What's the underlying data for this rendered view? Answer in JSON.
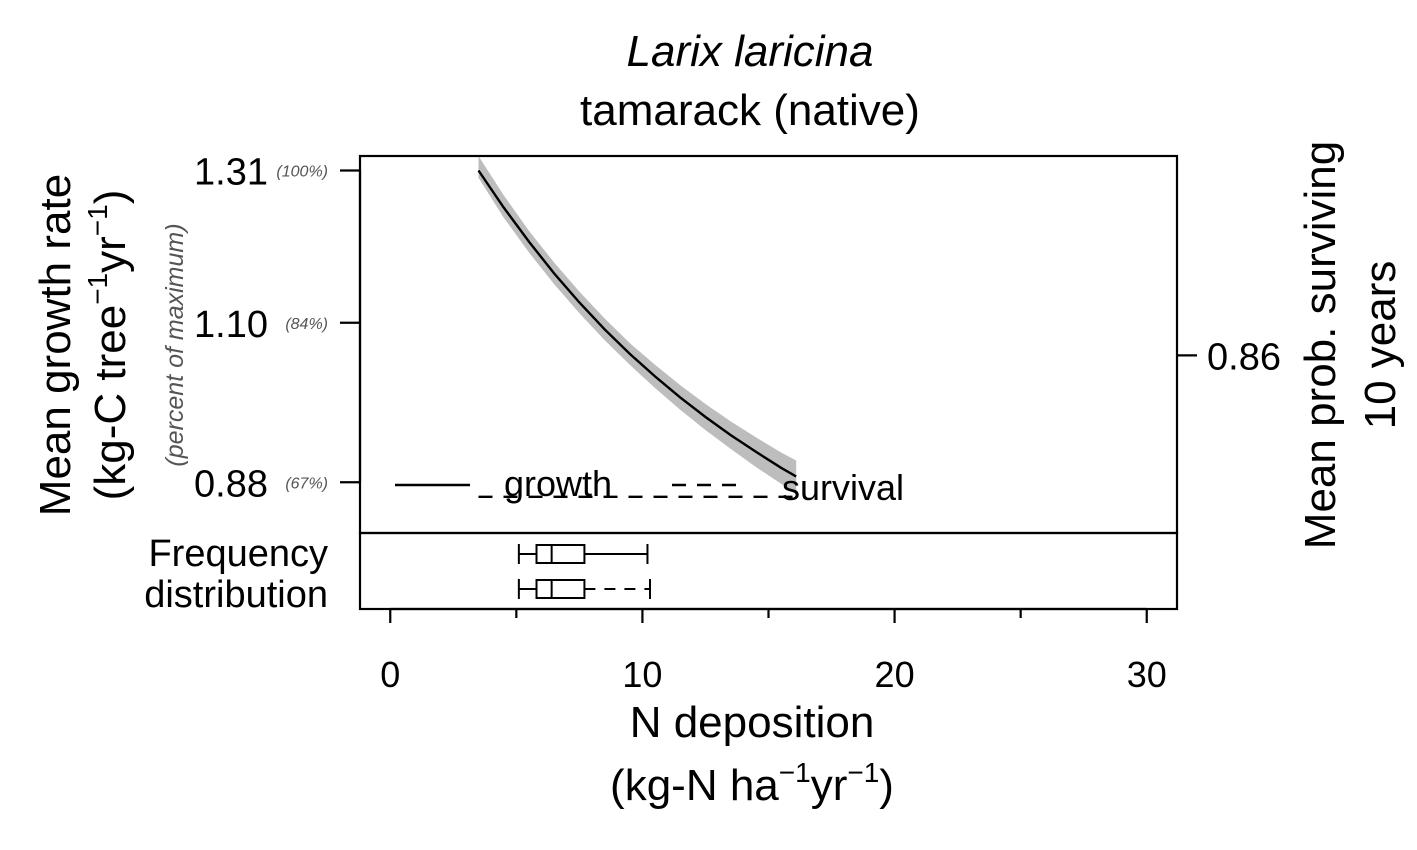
{
  "chart_data": {
    "type": "line",
    "title": "Larix laricina",
    "subtitle": "tamarack (native)",
    "xlabel": "N deposition",
    "xlabel_units_prefix": "(kg-N ha",
    "xlabel_units_mid": "yr",
    "xlabel_units_suffix": ")",
    "ylabel": "Mean growth rate",
    "ylabel_units_prefix": "(kg-C tree",
    "ylabel_units_mid": "yr",
    "ylabel_units_suffix": ")",
    "superscript": "−1",
    "ylabel_secondary": "(percent of maximum)",
    "ylabel_right_line1": "Mean prob. surviving",
    "ylabel_right_line2": "10 years",
    "xlim": [
      -1.2,
      31.2
    ],
    "ylim": [
      0.81,
      1.33
    ],
    "x_ticks": [
      0,
      10,
      20,
      30
    ],
    "x_minor_ticks": [
      5,
      15,
      25
    ],
    "y_ticks": [
      {
        "value": 1.31,
        "label": "1.31",
        "pct": "(100%)"
      },
      {
        "value": 1.1,
        "label": "1.10",
        "pct": "(84%)"
      },
      {
        "value": 0.88,
        "label": "0.88",
        "pct": "(67%)"
      }
    ],
    "right_ticks": [
      {
        "value": 0.86,
        "label": "0.86",
        "y_left_equiv": 1.055
      }
    ],
    "series": [
      {
        "name": "growth",
        "style": "solid",
        "color": "#000000",
        "band_color": "#bdbdbd",
        "x": [
          3.5,
          4.5,
          5.5,
          6.5,
          7.5,
          8.5,
          9.5,
          10.5,
          11.5,
          12.5,
          13.5,
          14.5,
          15.5,
          16.1
        ],
        "y": [
          1.31,
          1.259,
          1.212,
          1.168,
          1.128,
          1.091,
          1.057,
          1.026,
          0.997,
          0.97,
          0.945,
          0.922,
          0.9,
          0.888
        ],
        "band_lo": [
          1.3,
          1.245,
          1.197,
          1.153,
          1.113,
          1.076,
          1.042,
          1.01,
          0.98,
          0.952,
          0.926,
          0.901,
          0.878,
          0.864
        ],
        "band_hi": [
          1.33,
          1.276,
          1.227,
          1.183,
          1.143,
          1.106,
          1.072,
          1.042,
          1.014,
          0.988,
          0.964,
          0.942,
          0.921,
          0.91
        ]
      },
      {
        "name": "survival",
        "style": "dashed",
        "color": "#000000",
        "x": [
          3.5,
          16.1
        ],
        "y": [
          0.86,
          0.86
        ]
      }
    ],
    "frequency_label_line1": "Frequency",
    "frequency_label_line2": "distribution",
    "boxplots": [
      {
        "series": "growth",
        "whisker_style": "solid",
        "min": 5.1,
        "q1": 5.8,
        "median": 6.4,
        "q3": 7.7,
        "max": 10.2
      },
      {
        "series": "survival",
        "whisker_style": "dashed",
        "min": 5.1,
        "q1": 5.8,
        "median": 6.4,
        "q3": 7.7,
        "max": 10.3
      }
    ],
    "legend": {
      "position": "bottom-left",
      "entries": [
        "growth",
        "survival"
      ]
    }
  }
}
